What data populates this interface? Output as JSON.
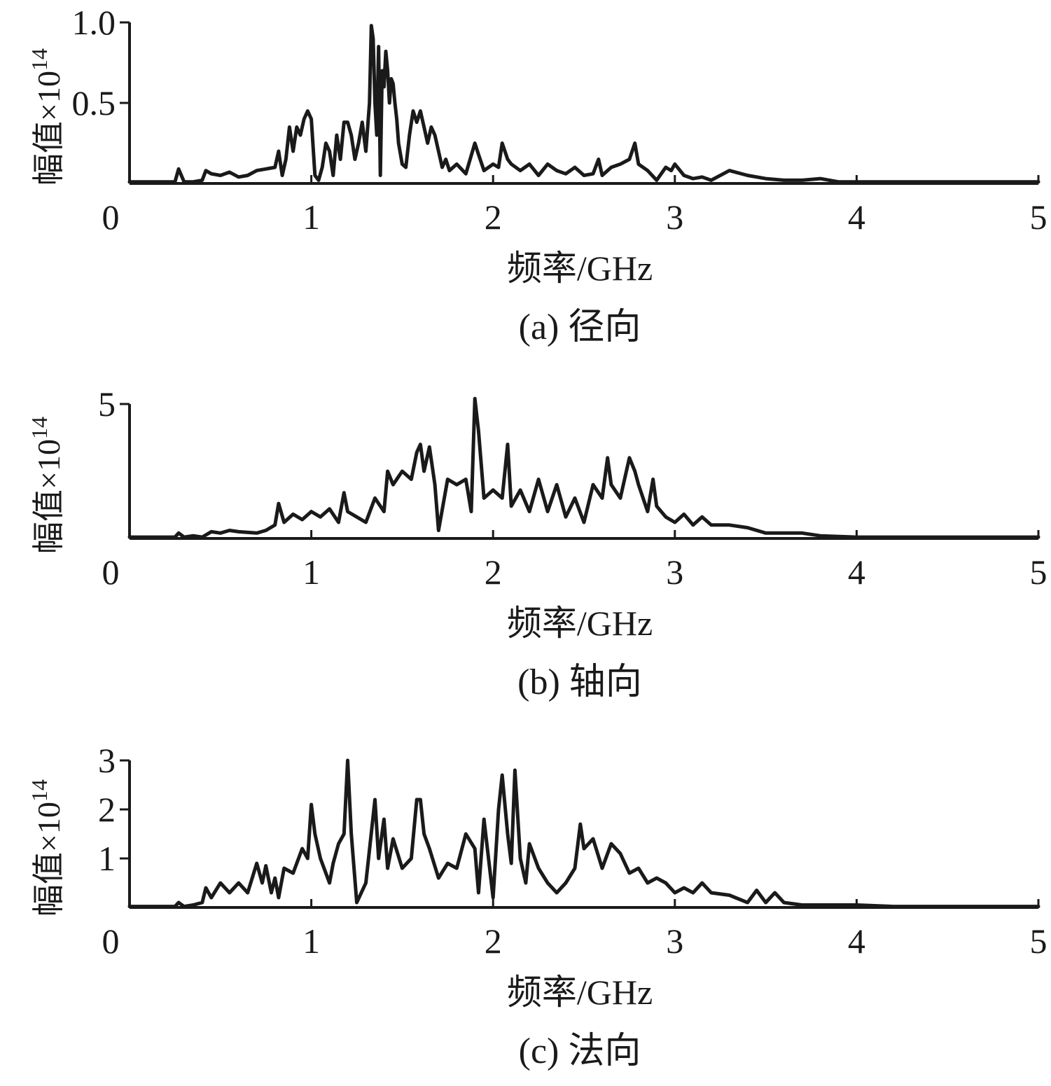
{
  "chart_data": [
    {
      "type": "line",
      "caption": "(a)  径向",
      "xlabel": "频率/GHz",
      "ylabel_main": "幅值×10",
      "ylabel_exp": "14",
      "xlim": [
        0,
        5
      ],
      "ylim": [
        0,
        1.0
      ],
      "xticks": [
        "0",
        "1",
        "2",
        "3",
        "4",
        "5"
      ],
      "yticks": [
        {
          "value": 0.5,
          "label": "0.5"
        },
        {
          "value": 1.0,
          "label": "1.0"
        }
      ],
      "series": [
        {
          "x": [
            0,
            0.2,
            0.25,
            0.27,
            0.3,
            0.35,
            0.4,
            0.42,
            0.45,
            0.5,
            0.55,
            0.6,
            0.65,
            0.7,
            0.75,
            0.8,
            0.82,
            0.84,
            0.86,
            0.88,
            0.9,
            0.92,
            0.94,
            0.96,
            0.98,
            1.0,
            1.02,
            1.04,
            1.06,
            1.08,
            1.1,
            1.12,
            1.14,
            1.16,
            1.18,
            1.2,
            1.22,
            1.24,
            1.26,
            1.28,
            1.3,
            1.32,
            1.33,
            1.34,
            1.35,
            1.36,
            1.37,
            1.38,
            1.39,
            1.4,
            1.41,
            1.42,
            1.43,
            1.44,
            1.45,
            1.46,
            1.47,
            1.48,
            1.5,
            1.52,
            1.54,
            1.56,
            1.58,
            1.6,
            1.62,
            1.64,
            1.66,
            1.68,
            1.7,
            1.72,
            1.74,
            1.76,
            1.78,
            1.8,
            1.85,
            1.9,
            1.92,
            1.95,
            2.0,
            2.03,
            2.05,
            2.08,
            2.1,
            2.15,
            2.2,
            2.25,
            2.3,
            2.35,
            2.4,
            2.45,
            2.5,
            2.55,
            2.58,
            2.6,
            2.65,
            2.7,
            2.75,
            2.78,
            2.8,
            2.85,
            2.9,
            2.95,
            2.98,
            3.0,
            3.05,
            3.1,
            3.15,
            3.2,
            3.3,
            3.4,
            3.5,
            3.6,
            3.7,
            3.8,
            3.9,
            4.0,
            4.1,
            4.2,
            4.5,
            5.0
          ],
          "y": [
            0.01,
            0.01,
            0.01,
            0.09,
            0.01,
            0.01,
            0.02,
            0.08,
            0.06,
            0.05,
            0.07,
            0.04,
            0.05,
            0.08,
            0.09,
            0.1,
            0.2,
            0.05,
            0.15,
            0.35,
            0.2,
            0.35,
            0.3,
            0.4,
            0.45,
            0.4,
            0.05,
            0.02,
            0.1,
            0.25,
            0.2,
            0.05,
            0.3,
            0.15,
            0.38,
            0.38,
            0.3,
            0.15,
            0.25,
            0.38,
            0.2,
            0.5,
            0.98,
            0.9,
            0.5,
            0.3,
            0.85,
            0.05,
            0.7,
            0.6,
            0.82,
            0.7,
            0.5,
            0.65,
            0.62,
            0.5,
            0.4,
            0.25,
            0.12,
            0.1,
            0.3,
            0.45,
            0.38,
            0.45,
            0.35,
            0.25,
            0.35,
            0.3,
            0.2,
            0.1,
            0.15,
            0.08,
            0.1,
            0.12,
            0.06,
            0.25,
            0.18,
            0.08,
            0.12,
            0.1,
            0.25,
            0.15,
            0.12,
            0.08,
            0.12,
            0.05,
            0.12,
            0.08,
            0.06,
            0.1,
            0.05,
            0.06,
            0.15,
            0.05,
            0.1,
            0.12,
            0.15,
            0.25,
            0.12,
            0.08,
            0.02,
            0.1,
            0.08,
            0.12,
            0.05,
            0.03,
            0.04,
            0.02,
            0.08,
            0.05,
            0.03,
            0.02,
            0.02,
            0.03,
            0.01,
            0.01,
            0.01,
            0.01,
            0.01,
            0.01
          ]
        }
      ]
    },
    {
      "type": "line",
      "caption": "(b)  轴向",
      "xlabel": "频率/GHz",
      "ylabel_main": "幅值×10",
      "ylabel_exp": "14",
      "xlim": [
        0,
        5
      ],
      "ylim": [
        0,
        5
      ],
      "xticks": [
        "0",
        "1",
        "2",
        "3",
        "4",
        "5"
      ],
      "yticks": [
        {
          "value": 5,
          "label": "5"
        }
      ],
      "series": [
        {
          "x": [
            0,
            0.2,
            0.25,
            0.27,
            0.3,
            0.35,
            0.4,
            0.45,
            0.5,
            0.55,
            0.6,
            0.7,
            0.75,
            0.8,
            0.82,
            0.85,
            0.9,
            0.95,
            1.0,
            1.05,
            1.1,
            1.15,
            1.18,
            1.2,
            1.25,
            1.3,
            1.35,
            1.4,
            1.42,
            1.45,
            1.5,
            1.55,
            1.58,
            1.6,
            1.62,
            1.65,
            1.68,
            1.7,
            1.75,
            1.8,
            1.85,
            1.88,
            1.9,
            1.92,
            1.95,
            2.0,
            2.05,
            2.08,
            2.1,
            2.15,
            2.2,
            2.25,
            2.3,
            2.35,
            2.4,
            2.45,
            2.5,
            2.55,
            2.6,
            2.63,
            2.65,
            2.7,
            2.75,
            2.78,
            2.8,
            2.85,
            2.88,
            2.9,
            2.95,
            3.0,
            3.05,
            3.1,
            3.15,
            3.2,
            3.3,
            3.4,
            3.5,
            3.6,
            3.7,
            3.8,
            4.0,
            4.2,
            4.5,
            5.0
          ],
          "y": [
            0.05,
            0.05,
            0.05,
            0.2,
            0.05,
            0.1,
            0.05,
            0.25,
            0.2,
            0.3,
            0.25,
            0.2,
            0.3,
            0.5,
            1.3,
            0.6,
            0.9,
            0.7,
            1.0,
            0.8,
            1.1,
            0.6,
            1.7,
            1.0,
            0.8,
            0.6,
            1.5,
            1.0,
            2.5,
            2.0,
            2.5,
            2.2,
            3.2,
            3.5,
            2.5,
            3.4,
            2.0,
            0.3,
            2.2,
            2.0,
            2.2,
            1.0,
            5.2,
            4.0,
            1.5,
            1.8,
            1.5,
            3.5,
            1.2,
            1.8,
            1.0,
            2.2,
            1.0,
            2.0,
            0.8,
            1.5,
            0.6,
            2.0,
            1.5,
            3.0,
            2.0,
            1.5,
            3.0,
            2.5,
            2.0,
            1.0,
            2.2,
            1.2,
            0.8,
            0.6,
            0.9,
            0.5,
            0.8,
            0.5,
            0.5,
            0.4,
            0.2,
            0.2,
            0.2,
            0.1,
            0.05,
            0.05,
            0.05,
            0.05
          ]
        }
      ]
    },
    {
      "type": "line",
      "caption": "(c)  法向",
      "xlabel": "频率/GHz",
      "ylabel_main": "幅值×10",
      "ylabel_exp": "14",
      "xlim": [
        0,
        5
      ],
      "ylim": [
        0,
        3
      ],
      "xticks": [
        "0",
        "1",
        "2",
        "3",
        "4",
        "5"
      ],
      "yticks": [
        {
          "value": 1,
          "label": "1"
        },
        {
          "value": 2,
          "label": "2"
        },
        {
          "value": 3,
          "label": "3"
        }
      ],
      "series": [
        {
          "x": [
            0,
            0.2,
            0.25,
            0.27,
            0.3,
            0.35,
            0.4,
            0.42,
            0.45,
            0.5,
            0.55,
            0.6,
            0.65,
            0.7,
            0.73,
            0.75,
            0.78,
            0.8,
            0.82,
            0.85,
            0.9,
            0.95,
            0.98,
            1.0,
            1.02,
            1.05,
            1.1,
            1.12,
            1.15,
            1.18,
            1.2,
            1.22,
            1.25,
            1.3,
            1.35,
            1.37,
            1.4,
            1.42,
            1.45,
            1.5,
            1.55,
            1.58,
            1.6,
            1.62,
            1.65,
            1.7,
            1.75,
            1.8,
            1.85,
            1.9,
            1.92,
            1.95,
            2.0,
            2.03,
            2.05,
            2.08,
            2.1,
            2.12,
            2.15,
            2.18,
            2.2,
            2.25,
            2.3,
            2.35,
            2.4,
            2.45,
            2.48,
            2.5,
            2.55,
            2.6,
            2.65,
            2.7,
            2.75,
            2.8,
            2.85,
            2.9,
            2.95,
            3.0,
            3.05,
            3.1,
            3.15,
            3.2,
            3.3,
            3.4,
            3.45,
            3.5,
            3.55,
            3.6,
            3.7,
            3.8,
            4.0,
            4.2,
            4.5,
            5.0
          ],
          "y": [
            0.02,
            0.02,
            0.02,
            0.1,
            0.02,
            0.05,
            0.1,
            0.4,
            0.2,
            0.5,
            0.3,
            0.5,
            0.3,
            0.9,
            0.5,
            0.85,
            0.3,
            0.6,
            0.2,
            0.8,
            0.7,
            1.2,
            1.0,
            2.1,
            1.5,
            1.0,
            0.5,
            0.9,
            1.3,
            1.5,
            3.0,
            1.5,
            0.1,
            0.5,
            2.2,
            1.0,
            1.8,
            0.8,
            1.4,
            0.8,
            1.0,
            2.2,
            2.2,
            1.5,
            1.2,
            0.6,
            0.9,
            0.8,
            1.5,
            1.2,
            0.3,
            1.8,
            0.2,
            2.0,
            2.7,
            1.5,
            0.9,
            2.8,
            1.0,
            0.5,
            1.3,
            0.8,
            0.5,
            0.3,
            0.5,
            0.8,
            1.7,
            1.2,
            1.4,
            0.8,
            1.3,
            1.1,
            0.7,
            0.8,
            0.5,
            0.6,
            0.5,
            0.3,
            0.4,
            0.3,
            0.5,
            0.3,
            0.25,
            0.1,
            0.35,
            0.1,
            0.3,
            0.1,
            0.05,
            0.05,
            0.05,
            0.02,
            0.02,
            0.02
          ]
        }
      ]
    }
  ]
}
